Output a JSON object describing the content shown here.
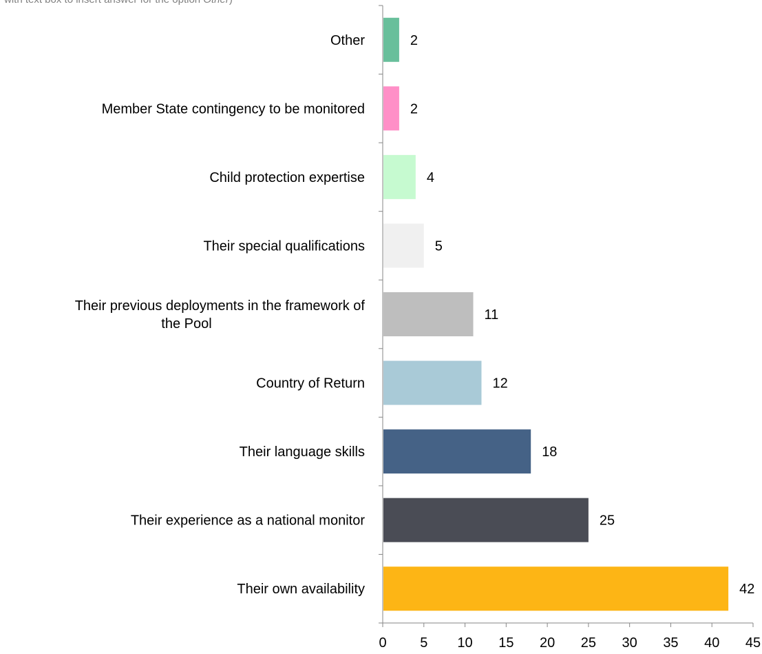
{
  "note": {
    "text": "with text box to insert answer for the option ",
    "italic": "Other",
    "suffix": ")"
  },
  "chart_data": {
    "type": "bar",
    "orientation": "horizontal",
    "categories": [
      "Their own availability",
      "Their experience as a national monitor",
      "Their language skills",
      "Country of Return",
      "Their previous deployments in the framework of the Pool",
      "Their special qualifications",
      "Child protection expertise",
      "Member State contingency to be monitored",
      "Other"
    ],
    "category_lines": [
      [
        "Their own availability"
      ],
      [
        "Their experience as a national monitor"
      ],
      [
        "Their language skills"
      ],
      [
        "Country of Return"
      ],
      [
        "Their previous deployments in the framework of",
        "the Pool"
      ],
      [
        "Their special qualifications"
      ],
      [
        "Child protection expertise"
      ],
      [
        "Member State contingency to be monitored"
      ],
      [
        "Other"
      ]
    ],
    "values": [
      42,
      25,
      18,
      12,
      11,
      5,
      4,
      2,
      2
    ],
    "colors": [
      "#FDB515",
      "#4A4C55",
      "#456286",
      "#A9CAD7",
      "#BEBEBE",
      "#F0F0F0",
      "#C6FAD0",
      "#FF8FC7",
      "#68BF9B"
    ],
    "xlim": [
      0,
      45
    ],
    "xticks": [
      0,
      5,
      10,
      15,
      20,
      25,
      30,
      35,
      40,
      45
    ],
    "grid": false,
    "legend": "none"
  }
}
